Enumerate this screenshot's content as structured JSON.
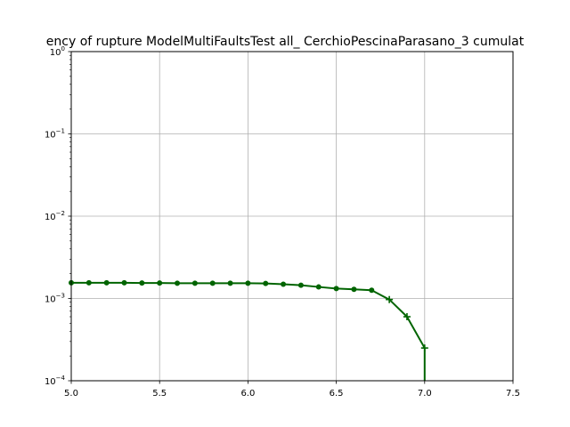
{
  "chart_data": {
    "type": "line",
    "title": "ency of rupture ModelMultiFaultsTest all_ CerchioPescinaParasano_3 cumulat",
    "xlabel": "",
    "ylabel": "",
    "xlim": [
      5.0,
      7.5
    ],
    "ylim": [
      0.0001,
      1
    ],
    "yscale": "log",
    "grid": true,
    "x_ticks": [
      5.0,
      5.5,
      6.0,
      6.5,
      7.0,
      7.5
    ],
    "x_tick_labels": [
      "5.0",
      "5.5",
      "6.0",
      "6.5",
      "7.0",
      "7.5"
    ],
    "y_ticks": [
      0.0001,
      0.001,
      0.01,
      0.1,
      1
    ],
    "y_tick_labels": [
      {
        "base": "10",
        "exp": "−4"
      },
      {
        "base": "10",
        "exp": "−3"
      },
      {
        "base": "10",
        "exp": "−2"
      },
      {
        "base": "10",
        "exp": "−1"
      },
      {
        "base": "10",
        "exp": "0"
      }
    ],
    "series": [
      {
        "color": "#006400",
        "x": [
          5.0,
          5.1,
          5.2,
          5.3,
          5.4,
          5.5,
          5.6,
          5.7,
          5.8,
          5.9,
          6.0,
          6.1,
          6.2,
          6.3,
          6.4,
          6.5,
          6.6,
          6.7,
          6.8,
          6.9,
          7.0
        ],
        "y": [
          0.00155,
          0.00155,
          0.00155,
          0.00155,
          0.00154,
          0.00154,
          0.00153,
          0.00153,
          0.00153,
          0.00153,
          0.00153,
          0.00152,
          0.00149,
          0.00145,
          0.00138,
          0.00132,
          0.00129,
          0.00126,
          0.00097,
          0.0006,
          0.00025
        ],
        "drop_to_axis_at_x": 7.0
      }
    ]
  }
}
